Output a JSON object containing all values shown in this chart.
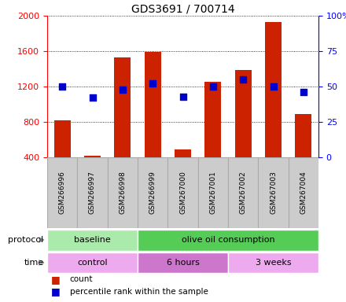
{
  "title": "GDS3691 / 700714",
  "samples": [
    "GSM266996",
    "GSM266997",
    "GSM266998",
    "GSM266999",
    "GSM267000",
    "GSM267001",
    "GSM267002",
    "GSM267003",
    "GSM267004"
  ],
  "bar_values": [
    820,
    415,
    1530,
    1590,
    490,
    1250,
    1390,
    1930,
    890
  ],
  "percentile_values": [
    50,
    42,
    48,
    52,
    43,
    50,
    55,
    50,
    46
  ],
  "left_ylim": [
    400,
    2000
  ],
  "right_ylim": [
    0,
    100
  ],
  "left_yticks": [
    400,
    800,
    1200,
    1600,
    2000
  ],
  "right_yticks": [
    0,
    25,
    50,
    75,
    100
  ],
  "right_yticklabels": [
    "0",
    "25",
    "50",
    "75",
    "100%"
  ],
  "bar_color": "#cc2200",
  "dot_color": "#0000cc",
  "bg_color": "#ffffff",
  "sample_box_color": "#cccccc",
  "sample_box_edge": "#aaaaaa",
  "protocol_groups": [
    {
      "label": "baseline",
      "start": 0,
      "end": 3,
      "color": "#aaeaaa"
    },
    {
      "label": "olive oil consumption",
      "start": 3,
      "end": 9,
      "color": "#55cc55"
    }
  ],
  "time_groups": [
    {
      "label": "control",
      "start": 0,
      "end": 3,
      "color": "#eeaaee"
    },
    {
      "label": "6 hours",
      "start": 3,
      "end": 6,
      "color": "#cc77cc"
    },
    {
      "label": "3 weeks",
      "start": 6,
      "end": 9,
      "color": "#eeaaee"
    }
  ],
  "legend_count_label": "count",
  "legend_pct_label": "percentile rank within the sample",
  "protocol_label": "protocol",
  "time_label": "time",
  "arrow_color": "#999999"
}
